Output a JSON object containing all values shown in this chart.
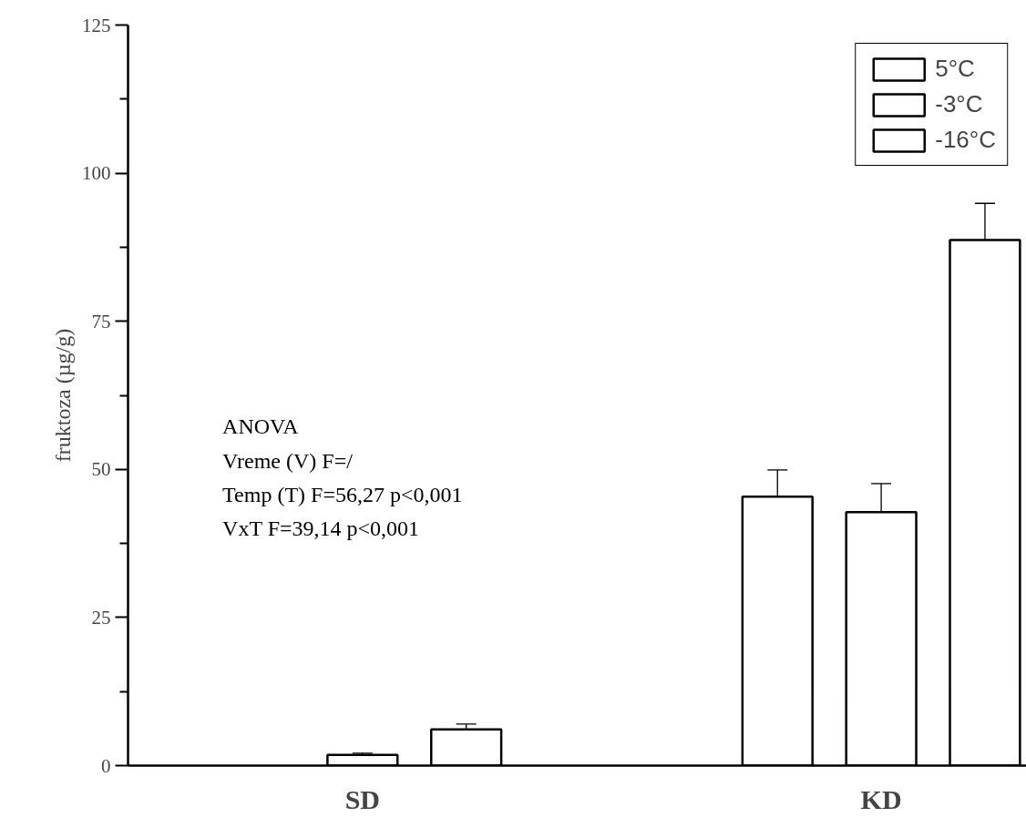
{
  "chart_data": {
    "type": "bar",
    "categories": [
      "SD",
      "KD"
    ],
    "ylabel": "fruktoza (µg/g)",
    "ylim": [
      0,
      125
    ],
    "yticks": [
      0,
      {
        "value": 12.5,
        "label": null
      },
      25,
      {
        "value": 37.5,
        "label": null
      },
      50,
      {
        "value": 62.5,
        "label": null
      },
      75,
      {
        "value": 87.5,
        "label": null
      },
      100,
      {
        "value": 112.5,
        "label": null
      },
      125
    ],
    "series": [
      {
        "name": "5°C",
        "color": "#ffffff",
        "values": [
          null,
          45.4
        ],
        "errors": [
          null,
          4.5
        ]
      },
      {
        "name": "-3°C",
        "color": "#ffffff",
        "values": [
          1.8,
          42.8
        ],
        "errors": [
          0.3,
          4.8
        ]
      },
      {
        "name": "-16°C",
        "color": "#ffffff",
        "values": [
          6.1,
          88.7
        ],
        "errors": [
          0.9,
          6.2
        ]
      }
    ],
    "annotations": [
      "ANOVA",
      "Vreme (V)     F=/",
      "Temp (T)      F=56,27   p<0,001",
      "VxT               F=39,14   p<0,001"
    ],
    "legend": "top right",
    "grid": false
  }
}
